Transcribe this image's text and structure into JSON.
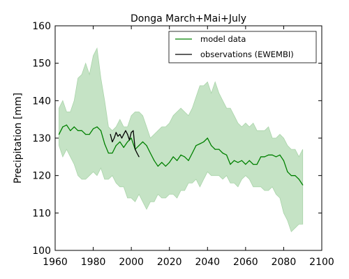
{
  "chart_data": {
    "type": "line",
    "title": "Donga March+Mai+July",
    "xlabel": "",
    "ylabel": "Precipitation [mm]",
    "xlim": [
      1960,
      2100
    ],
    "ylim": [
      100,
      160
    ],
    "xticks": [
      1960,
      1980,
      2000,
      2020,
      2040,
      2060,
      2080,
      2100
    ],
    "yticks": [
      100,
      110,
      120,
      130,
      140,
      150,
      160
    ],
    "grid": false,
    "legend_position": "top-right",
    "colors": {
      "model": "#008000",
      "band": "#c5e3c5",
      "band_edge": "#a9d4a9",
      "obs": "#000000"
    },
    "series": [
      {
        "name": "model data",
        "style": "line",
        "x": [
          1962,
          1964,
          1966,
          1968,
          1970,
          1972,
          1974,
          1976,
          1978,
          1980,
          1982,
          1984,
          1986,
          1988,
          1990,
          1992,
          1994,
          1996,
          1998,
          2000,
          2002,
          2004,
          2006,
          2008,
          2010,
          2012,
          2014,
          2016,
          2018,
          2020,
          2022,
          2024,
          2026,
          2028,
          2030,
          2032,
          2034,
          2036,
          2038,
          2040,
          2042,
          2044,
          2046,
          2048,
          2050,
          2052,
          2054,
          2056,
          2058,
          2060,
          2062,
          2064,
          2066,
          2068,
          2070,
          2072,
          2074,
          2076,
          2078,
          2080,
          2082,
          2084,
          2086,
          2088,
          2090
        ],
        "y": [
          131,
          133,
          133.5,
          132,
          133,
          132,
          132,
          131,
          131,
          132.5,
          133,
          132,
          128.5,
          126,
          126,
          128,
          129,
          127.5,
          129,
          130,
          127,
          128,
          129,
          128,
          126,
          124,
          122.5,
          123.5,
          122.5,
          123.5,
          125,
          124,
          125.5,
          125,
          124,
          126,
          128,
          128.5,
          129,
          130,
          128,
          127,
          127,
          126,
          125.5,
          123,
          124,
          123.5,
          124,
          123,
          124,
          123,
          123,
          125,
          125,
          125.5,
          125.5,
          125,
          125.5,
          124,
          121,
          120,
          120,
          119,
          117.5
        ]
      },
      {
        "name": "observations (EWEMBI)",
        "style": "line",
        "x": [
          1989,
          1990,
          1991,
          1992,
          1993,
          1994,
          1995,
          1996,
          1997,
          1998,
          1999,
          2000,
          2001,
          2002,
          2003,
          2004
        ],
        "y": [
          131,
          129,
          130,
          131.5,
          130.5,
          131,
          130,
          131,
          132,
          131,
          129.5,
          131.5,
          132,
          127,
          126,
          125
        ]
      },
      {
        "name": "",
        "style": "band",
        "x": [
          1962,
          1964,
          1966,
          1968,
          1970,
          1972,
          1974,
          1976,
          1978,
          1980,
          1982,
          1984,
          1986,
          1988,
          1990,
          1992,
          1994,
          1996,
          1998,
          2000,
          2002,
          2004,
          2006,
          2008,
          2010,
          2012,
          2014,
          2016,
          2018,
          2020,
          2022,
          2024,
          2026,
          2028,
          2030,
          2032,
          2034,
          2036,
          2038,
          2040,
          2042,
          2044,
          2046,
          2048,
          2050,
          2052,
          2054,
          2056,
          2058,
          2060,
          2062,
          2064,
          2066,
          2068,
          2070,
          2072,
          2074,
          2076,
          2078,
          2080,
          2082,
          2084,
          2086,
          2088,
          2090
        ],
        "upper": [
          138,
          140,
          137,
          137,
          140,
          146,
          147,
          150,
          147,
          152,
          154,
          146,
          140,
          133,
          132,
          133,
          135,
          133,
          133,
          136,
          137,
          137,
          136,
          133,
          130,
          131,
          132,
          133,
          133,
          134,
          136,
          137,
          138,
          137,
          136,
          138,
          141,
          144,
          144,
          145,
          142,
          145,
          142,
          140,
          138,
          138,
          136,
          134,
          133,
          134,
          133,
          134,
          132,
          132,
          132,
          133,
          130,
          130,
          131,
          130,
          128,
          127,
          127,
          125,
          127
        ],
        "lower": [
          128,
          125,
          127,
          125,
          123,
          120,
          119,
          119,
          120,
          121,
          120,
          122,
          119,
          119,
          120,
          118,
          117,
          117,
          114,
          114,
          113,
          115,
          113,
          111,
          113,
          113,
          115,
          114,
          114,
          115,
          115,
          114,
          116,
          116,
          118,
          118,
          119,
          117,
          119,
          121,
          120,
          120,
          120,
          119,
          120,
          118,
          118,
          117,
          119,
          120,
          119,
          117,
          117,
          117,
          116,
          116,
          117,
          115,
          114,
          110,
          108,
          105,
          106,
          107,
          107
        ]
      }
    ]
  }
}
